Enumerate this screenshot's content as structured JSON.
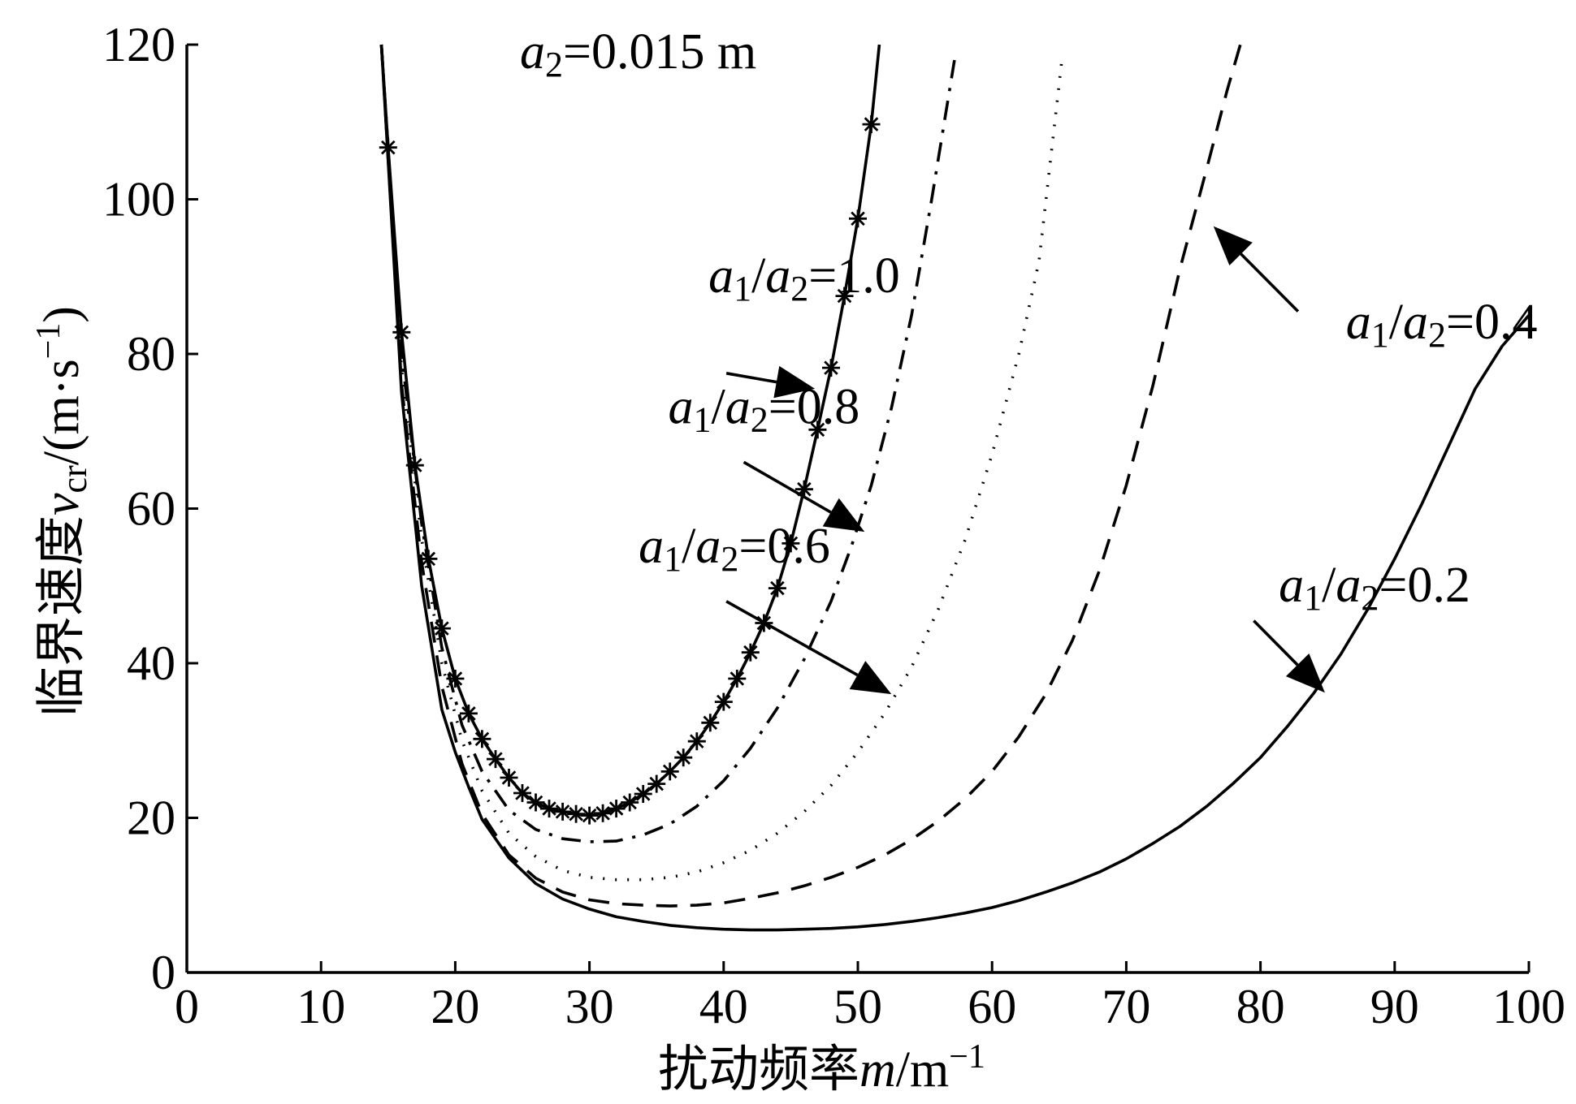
{
  "chart_data": {
    "type": "line",
    "title": "",
    "xlabel": "扰动频率m/m⁻¹",
    "xlabel_parts": {
      "prefix": "扰动频率",
      "var": "m",
      "unit": "/m",
      "sup": "−1"
    },
    "ylabel": "临界速度v_cr/(m·s⁻¹)",
    "ylabel_parts": {
      "prefix": "临界速度",
      "var": "v",
      "sub": "cr",
      "unit": "/(m·s",
      "sup": "−1",
      "close": ")"
    },
    "xlim": [
      0,
      100
    ],
    "ylim": [
      0,
      120
    ],
    "xticks": [
      0,
      10,
      20,
      30,
      40,
      50,
      60,
      70,
      80,
      90,
      100
    ],
    "yticks": [
      0,
      20,
      40,
      60,
      80,
      100,
      120
    ],
    "grid": false,
    "header_annotation": {
      "var": "a",
      "sub": "2",
      "text": "=0.015 m"
    },
    "series": [
      {
        "name": "a1/a2=1.0",
        "label": {
          "a1": "a",
          "s1": "1",
          "slash": "/",
          "a2": "a",
          "s2": "2",
          "value": "=1.0"
        },
        "style": "solid-star",
        "x": [
          14.5,
          15.0,
          16.0,
          17.0,
          18.0,
          19.0,
          20.0,
          21.0,
          22.0,
          23.0,
          24.0,
          25.0,
          26.0,
          27.0,
          28.0,
          29.0,
          30.0,
          31.0,
          32.0,
          33.0,
          34.0,
          35.0,
          36.0,
          37.0,
          38.0,
          39.0,
          40.0,
          41.0,
          42.0,
          43.0,
          44.0,
          45.0,
          46.0,
          47.0,
          48.0,
          49.0,
          50.0,
          51.0,
          51.6
        ],
        "y": [
          120,
          106.7,
          82.8,
          65.6,
          53.5,
          44.5,
          38.0,
          33.5,
          30.2,
          27.6,
          25.2,
          23.2,
          22.0,
          21.2,
          20.8,
          20.5,
          20.3,
          20.6,
          21.2,
          22.0,
          23.1,
          24.4,
          26.0,
          27.8,
          29.9,
          32.3,
          35.0,
          38.0,
          41.4,
          45.2,
          49.7,
          55.5,
          62.5,
          70.2,
          78.2,
          87.5,
          97.5,
          109.7,
          120
        ]
      },
      {
        "name": "a1/a2=0.8",
        "label": {
          "a1": "a",
          "s1": "1",
          "slash": "/",
          "a2": "a",
          "s2": "2",
          "value": "=0.8"
        },
        "style": "dashdot",
        "x": [
          14.5,
          16.0,
          17.5,
          19.0,
          20.5,
          22.0,
          24.0,
          26.0,
          28.0,
          30.0,
          32.0,
          34.0,
          36.0,
          38.0,
          40.0,
          42.0,
          44.0,
          46.0,
          48.0,
          49.5,
          51.0,
          52.5,
          54.0,
          55.5,
          57.2
        ],
        "y": [
          120,
          80.0,
          58.0,
          42.0,
          32.0,
          26.0,
          21.0,
          18.5,
          17.3,
          16.9,
          17.0,
          17.8,
          19.2,
          21.5,
          24.8,
          29.0,
          34.2,
          40.5,
          48.0,
          55.0,
          63.0,
          73.0,
          85.0,
          100.0,
          118.0
        ]
      },
      {
        "name": "a1/a2=0.6",
        "label": {
          "a1": "a",
          "s1": "1",
          "slash": "/",
          "a2": "a",
          "s2": "2",
          "value": "=0.6"
        },
        "style": "dotted",
        "x": [
          14.5,
          16.0,
          17.5,
          19.0,
          20.5,
          22.0,
          24.0,
          26.0,
          28.0,
          30.0,
          32.0,
          34.0,
          36.0,
          38.0,
          40.0,
          42.0,
          44.0,
          46.0,
          48.0,
          50.0,
          52.0,
          54.0,
          56.0,
          58.0,
          60.0,
          62.0,
          63.5,
          65.2
        ],
        "y": [
          120,
          78.0,
          56.0,
          40.0,
          30.0,
          23.5,
          18.0,
          15.0,
          13.2,
          12.3,
          12.0,
          12.0,
          12.3,
          13.0,
          14.2,
          15.8,
          18.0,
          20.8,
          24.2,
          28.5,
          33.5,
          39.5,
          47.0,
          56.0,
          67.0,
          80.0,
          92.0,
          118.0
        ]
      },
      {
        "name": "a1/a2=0.4",
        "label": {
          "a1": "a",
          "s1": "1",
          "slash": "/",
          "a2": "a",
          "s2": "2",
          "value": "=0.4"
        },
        "style": "dashed",
        "x": [
          14.5,
          16.0,
          17.5,
          19.0,
          20.5,
          22.0,
          24.0,
          26.0,
          28.0,
          30.0,
          32.0,
          34.0,
          36.0,
          38.0,
          40.0,
          42.0,
          44.0,
          46.0,
          48.0,
          50.0,
          52.0,
          54.0,
          56.0,
          58.0,
          60.0,
          62.0,
          64.0,
          66.0,
          68.0,
          70.0,
          72.0,
          74.0,
          76.0,
          77.5,
          78.5
        ],
        "y": [
          120,
          76.0,
          53.0,
          37.0,
          27.0,
          20.5,
          15.2,
          12.2,
          10.4,
          9.4,
          8.9,
          8.7,
          8.6,
          8.7,
          9.0,
          9.6,
          10.3,
          11.2,
          12.3,
          13.6,
          15.2,
          17.2,
          19.6,
          22.5,
          26.0,
          30.5,
          36.0,
          43.0,
          52.0,
          63.0,
          76.0,
          91.0,
          104.0,
          114.0,
          120.0
        ]
      },
      {
        "name": "a1/a2=0.2",
        "label": {
          "a1": "a",
          "s1": "1",
          "slash": "/",
          "a2": "a",
          "s2": "2",
          "value": "=0.2"
        },
        "style": "solid",
        "x": [
          14.5,
          16.0,
          17.5,
          19.0,
          20.0,
          21.0,
          22.0,
          24.0,
          26.0,
          28.0,
          30.0,
          32.0,
          34.0,
          36.0,
          38.0,
          40.0,
          42.0,
          44.0,
          46.0,
          48.0,
          50.0,
          52.0,
          54.0,
          56.0,
          58.0,
          60.0,
          62.0,
          64.0,
          66.0,
          68.0,
          70.0,
          72.0,
          74.0,
          76.0,
          78.0,
          80.0,
          82.0,
          84.0,
          86.0,
          88.0,
          90.0,
          92.0,
          94.0,
          96.0,
          98.0,
          100.0
        ],
        "y": [
          120,
          75.0,
          50.0,
          34.0,
          28.5,
          24.0,
          19.8,
          14.8,
          11.5,
          9.5,
          8.2,
          7.2,
          6.6,
          6.1,
          5.8,
          5.6,
          5.5,
          5.5,
          5.6,
          5.7,
          5.9,
          6.2,
          6.6,
          7.1,
          7.7,
          8.4,
          9.3,
          10.4,
          11.6,
          13.0,
          14.7,
          16.7,
          18.9,
          21.5,
          24.5,
          27.8,
          31.8,
          36.2,
          41.2,
          47.0,
          53.5,
          60.5,
          68.0,
          75.5,
          81.0,
          85.0
        ]
      }
    ],
    "annotations": [
      {
        "series": 0,
        "text_at": [
          46,
          88
        ],
        "arrow_from": [
          40.2,
          77.5
        ],
        "arrow_to": [
          46.8,
          75.5
        ]
      },
      {
        "series": 1,
        "text_at": [
          43,
          71
        ],
        "arrow_from": [
          41.5,
          66.0
        ],
        "arrow_to": [
          50.5,
          57.0
        ]
      },
      {
        "series": 2,
        "text_at": [
          40.8,
          53
        ],
        "arrow_from": [
          40.2,
          48.0
        ],
        "arrow_to": [
          52.5,
          36.0
        ]
      },
      {
        "series": 3,
        "text_at": [
          93.5,
          82
        ],
        "arrow_from": [
          82.8,
          85.5
        ],
        "arrow_to": [
          76.5,
          96.5
        ]
      },
      {
        "series": 4,
        "text_at": [
          88.5,
          48
        ],
        "arrow_from": [
          79.5,
          45.5
        ],
        "arrow_to": [
          84.8,
          36.2
        ]
      }
    ]
  }
}
